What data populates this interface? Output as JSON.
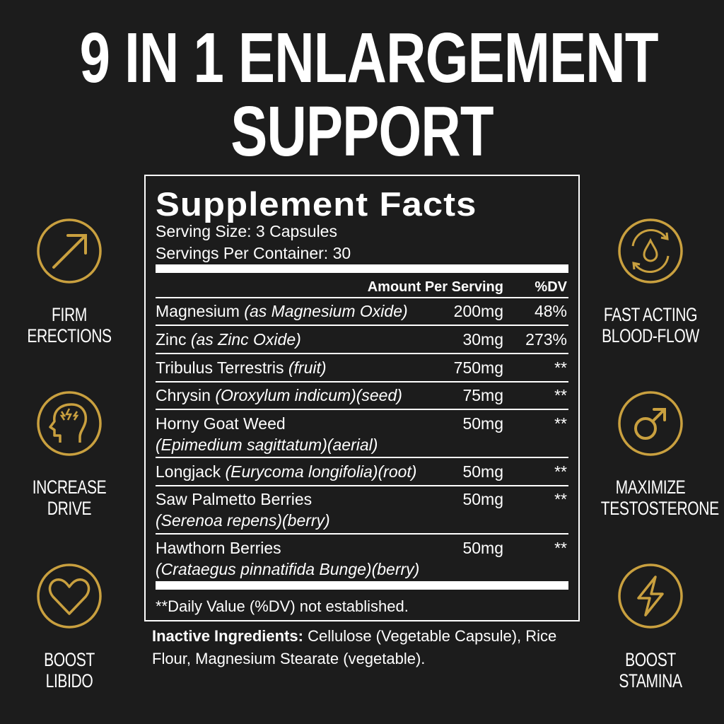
{
  "title": {
    "line1": "9 IN 1 ENLARGEMENT",
    "line2": "SUPPORT"
  },
  "accent_color": "#c9a03f",
  "features_left": [
    {
      "icon": "arrow-up-right-icon",
      "label1": "FIRM",
      "label2": "ERECTIONS"
    },
    {
      "icon": "head-lightning-icon",
      "label1": "INCREASE",
      "label2": "DRIVE"
    },
    {
      "icon": "heart-icon",
      "label1": "BOOST",
      "label2": "LIBIDO"
    }
  ],
  "features_right": [
    {
      "icon": "blood-drop-cycle-icon",
      "label1": "FAST ACTING",
      "label2": "BLOOD-FLOW"
    },
    {
      "icon": "male-symbol-icon",
      "label1": "MAXIMIZE",
      "label2": "TESTOSTERONE"
    },
    {
      "icon": "lightning-icon",
      "label1": "BOOST",
      "label2": "STAMINA"
    }
  ],
  "facts": {
    "heading": "Supplement Facts",
    "serving_size": "Serving Size: 3 Capsules",
    "servings_per_container": "Servings Per Container: 30",
    "col_amount": "Amount Per Serving",
    "col_dv": "%DV",
    "rows": [
      {
        "name": "Magnesium ",
        "detail": "(as Magnesium Oxide)",
        "amount": "200mg",
        "dv": "48%"
      },
      {
        "name": "Zinc ",
        "detail": "(as Zinc Oxide)",
        "amount": "30mg",
        "dv": "273%"
      },
      {
        "name": "Tribulus Terrestris ",
        "detail": "(fruit)",
        "amount": "750mg",
        "dv": "**"
      },
      {
        "name": "Chrysin ",
        "detail": "(Oroxylum indicum)(seed)",
        "amount": "75mg",
        "dv": "**"
      },
      {
        "name": "Horny Goat Weed",
        "detail": "(Epimedium sagittatum)(aerial)",
        "amount": "50mg",
        "dv": "**"
      },
      {
        "name": "Longjack ",
        "detail": "(Eurycoma longifolia)(root)",
        "amount": "50mg",
        "dv": "**"
      },
      {
        "name": "Saw Palmetto Berries",
        "detail": "(Serenoa repens)(berry)",
        "amount": "50mg",
        "dv": "**"
      },
      {
        "name": "Hawthorn Berries",
        "detail": "(Crataegus pinnatifida Bunge)(berry)",
        "amount": "50mg",
        "dv": "**"
      }
    ],
    "footnote": "**Daily Value (%DV) not established."
  },
  "inactive": {
    "label": "Inactive Ingredients:",
    "text": " Cellulose (Vegetable Capsule), Rice Flour, Magnesium Stearate (vegetable)."
  }
}
